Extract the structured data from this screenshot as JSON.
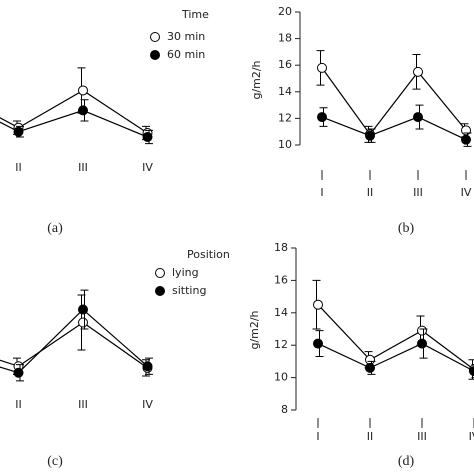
{
  "chart_data": [
    {
      "type": "line",
      "caption": "(a)",
      "legend_title": "Time",
      "categories": [
        null,
        "II",
        "III",
        "IV"
      ],
      "series": [
        {
          "name": "30 min",
          "marker": "open",
          "color": "#000000",
          "values": [
            13.9,
            11.3,
            14.1,
            10.9
          ],
          "errors": [
            0.6,
            0.5,
            1.7,
            0.5
          ]
        },
        {
          "name": "60 min",
          "marker": "filled",
          "color": "#000000",
          "values": [
            13.5,
            11.0,
            12.6,
            10.6
          ],
          "errors": [
            0.6,
            0.4,
            0.8,
            0.5
          ]
        }
      ],
      "ylim": [
        10,
        20
      ]
    },
    {
      "type": "line",
      "caption": "(b)",
      "ylabel": "g/m2/h",
      "categories": [
        "I",
        "II",
        "III",
        "IV"
      ],
      "series": [
        {
          "marker": "open",
          "color": "#000000",
          "values": [
            15.8,
            10.8,
            15.5,
            11.1
          ],
          "errors": [
            1.3,
            0.6,
            1.3,
            0.5
          ]
        },
        {
          "marker": "filled",
          "color": "#000000",
          "values": [
            12.1,
            10.7,
            12.1,
            10.4
          ],
          "errors": [
            0.7,
            0.5,
            0.9,
            0.5
          ]
        }
      ],
      "ylim": [
        10,
        20
      ],
      "yticks": [
        10,
        12,
        14,
        16,
        18,
        20
      ]
    },
    {
      "type": "line",
      "caption": "(c)",
      "legend_title": "Position",
      "categories": [
        null,
        "II",
        "III",
        "IV"
      ],
      "series": [
        {
          "name": "lying",
          "marker": "open",
          "color": "#000000",
          "values": [
            12.0,
            10.7,
            13.4,
            10.6
          ],
          "errors": [
            0.6,
            0.5,
            1.7,
            0.5
          ]
        },
        {
          "name": "sitting",
          "marker": "filled",
          "color": "#000000",
          "values": [
            11.5,
            10.3,
            14.2,
            10.7
          ],
          "errors": [
            0.6,
            0.5,
            1.2,
            0.5
          ]
        }
      ],
      "ylim": [
        8,
        18
      ]
    },
    {
      "type": "line",
      "caption": "(d)",
      "ylabel": "g/m2/h",
      "categories": [
        "I",
        "II",
        "III",
        "IV"
      ],
      "series": [
        {
          "marker": "open",
          "color": "#000000",
          "values": [
            14.5,
            11.1,
            12.9,
            10.5
          ],
          "errors": [
            1.5,
            0.5,
            0.9,
            0.6
          ]
        },
        {
          "marker": "filled",
          "color": "#000000",
          "values": [
            12.1,
            10.6,
            12.1,
            10.4
          ],
          "errors": [
            0.8,
            0.4,
            0.9,
            0.4
          ]
        }
      ],
      "ylim": [
        8,
        18
      ],
      "yticks": [
        8,
        10,
        12,
        14,
        16,
        18
      ]
    }
  ]
}
